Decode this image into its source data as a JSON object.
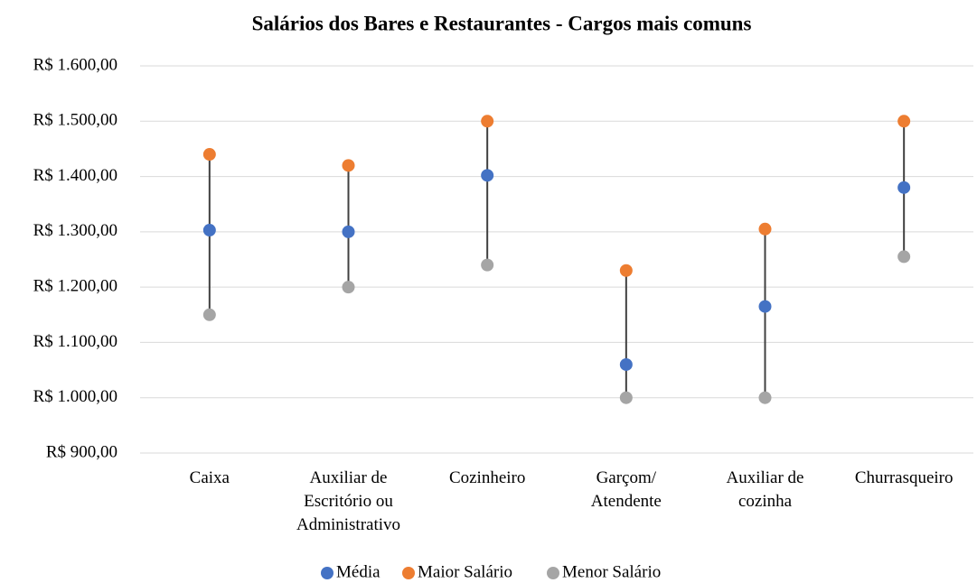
{
  "chart_data": {
    "type": "dot",
    "title": "Salários dos Bares e Restaurantes - Cargos mais comuns",
    "categories": [
      "Caixa",
      "Auxiliar de\nEscritório ou\nAdministrativo",
      "Cozinheiro",
      "Garçom/\nAtendente",
      "Auxiliar de\ncozinha",
      "Churrasqueiro"
    ],
    "series": [
      {
        "name": "Média",
        "color": "#4472c4",
        "values": [
          1303,
          1300,
          1402,
          1060,
          1165,
          1380
        ]
      },
      {
        "name": "Maior Salário",
        "color": "#ed7d31",
        "values": [
          1440,
          1420,
          1500,
          1230,
          1305,
          1500
        ]
      },
      {
        "name": "Menor Salário",
        "color": "#a5a5a5",
        "values": [
          1150,
          1200,
          1240,
          1000,
          1000,
          1255
        ]
      }
    ],
    "ylim": [
      900,
      1600
    ],
    "yticks": [
      {
        "value": 900,
        "label": "R$ 900,00"
      },
      {
        "value": 1000,
        "label": "R$ 1.000,00"
      },
      {
        "value": 1100,
        "label": "R$ 1.100,00"
      },
      {
        "value": 1200,
        "label": "R$ 1.200,00"
      },
      {
        "value": 1300,
        "label": "R$ 1.300,00"
      },
      {
        "value": 1400,
        "label": "R$ 1.400,00"
      },
      {
        "value": 1500,
        "label": "R$ 1.500,00"
      },
      {
        "value": 1600,
        "label": "R$ 1.600,00"
      }
    ],
    "grid": true,
    "high_low_lines": true,
    "legend": "bottom"
  }
}
